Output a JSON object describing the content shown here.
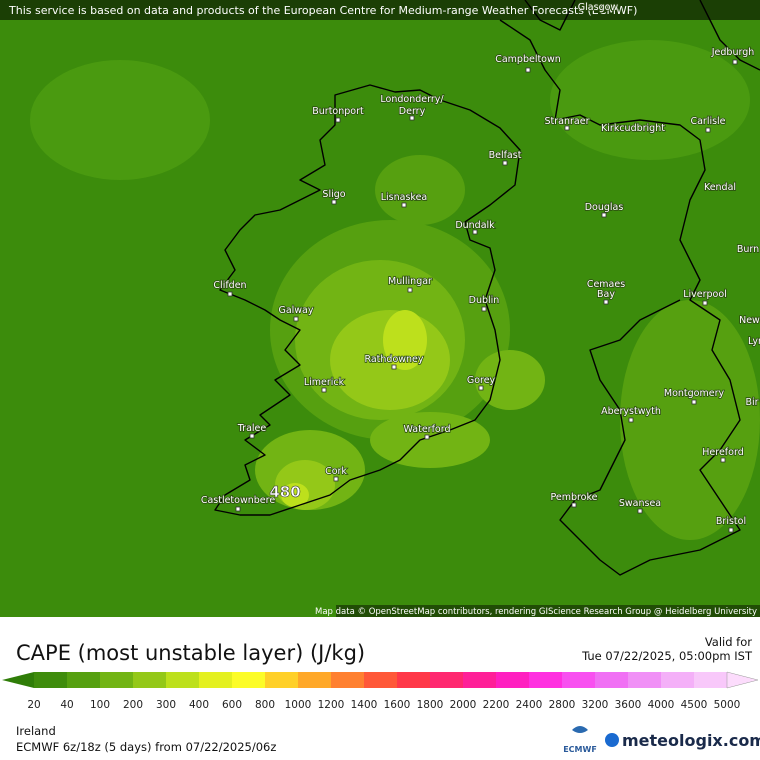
{
  "header": {
    "notice": "This service is based on data and products of the European Centre for Medium-range Weather Forecasts (ECMWF)"
  },
  "map": {
    "places": [
      "Glasgow",
      "Campbeltown",
      "Jedburgh",
      "Burtonport",
      "Londonderry/",
      "Derry",
      "Stranraer",
      "Kirkcudbright",
      "Carlisle",
      "Belfast",
      "Sligo",
      "Lisnaskea",
      "Kendal",
      "Douglas",
      "Dundalk",
      "Burn",
      "Mullingar",
      "Clifden",
      "Dublin",
      "Cemaes",
      "Bay",
      "Liverpool",
      "Galway",
      "Newca",
      "Lyr",
      "Rathdowney",
      "Limerick",
      "Gorey",
      "Montgomery",
      "Bir",
      "Aberystwyth",
      "Tralee",
      "Waterford",
      "Hereford",
      "Cork",
      "Castletownbere",
      "Pembroke",
      "Swansea",
      "Bristol"
    ],
    "max_label": "480",
    "attribution": "Map data © OpenStreetMap contributors, rendering GIScience Research Group @ Heidelberg University"
  },
  "panel": {
    "title": "CAPE (most unstable layer) (J/kg)",
    "valid_label": "Valid for",
    "valid_time": "Tue 07/22/2025, 05:00pm IST",
    "region": "Ireland",
    "model_run": "ECMWF 6z/18z (5 days) from 07/22/2025/06z",
    "ecmwf_logo": "ECMWF",
    "brand": "meteologix.com"
  },
  "colorbar": {
    "labels": [
      20,
      40,
      100,
      200,
      300,
      400,
      600,
      800,
      1000,
      1200,
      1400,
      1600,
      1800,
      2000,
      2200,
      2400,
      2800,
      3200,
      3600,
      4000,
      4500,
      5000
    ],
    "colors": [
      "#2f7d08",
      "#3f8c0c",
      "#56a010",
      "#72b414",
      "#94c818",
      "#bde01c",
      "#e4f020",
      "#fcfc28",
      "#ffd028",
      "#ffa828",
      "#ff8030",
      "#ff5838",
      "#ff3848",
      "#ff2870",
      "#ff2098",
      "#ff20c0",
      "#ff30e0",
      "#f850f0",
      "#f070f4",
      "#f090f6",
      "#f4b0f8",
      "#f8c8fa",
      "#fcdcfc"
    ]
  }
}
